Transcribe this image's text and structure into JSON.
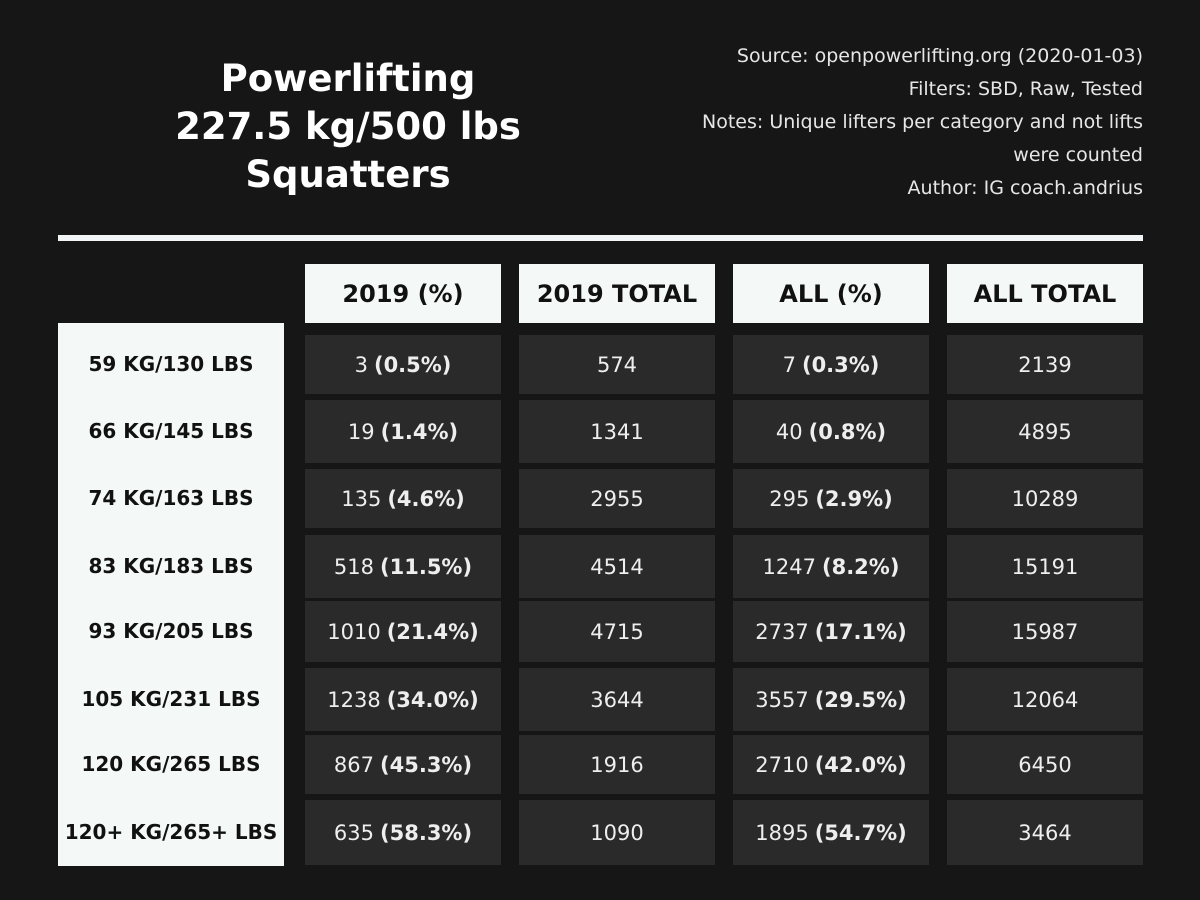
{
  "title": {
    "line1": "Powerlifting",
    "line2": "227.5 kg/500 lbs",
    "line3": "Squatters"
  },
  "meta": {
    "source": "Source: openpowerlifting.org (2020-01-03)",
    "filters": "Filters: SBD, Raw, Tested",
    "notes_line1": "Notes: Unique lifters per category and not lifts",
    "notes_line2": "were counted",
    "author": "Author: IG coach.andrius"
  },
  "colors": {
    "background": "#161616",
    "header_bg": "#f4f9f8",
    "cell_bg": "#2a2a2a"
  },
  "chart_data": {
    "type": "table",
    "title": "Powerlifting 227.5 kg/500 lbs Squatters",
    "columns": [
      "2019 (%)",
      "2019 TOTAL",
      "ALL (%)",
      "ALL TOTAL"
    ],
    "rows": [
      {
        "label": "59 KG/130 LBS",
        "c2019": "3",
        "p2019": "(0.5%)",
        "t2019": "574",
        "call": "7",
        "pall": "(0.3%)",
        "tall": "2139"
      },
      {
        "label": "66 KG/145 LBS",
        "c2019": "19",
        "p2019": "(1.4%)",
        "t2019": "1341",
        "call": "40",
        "pall": "(0.8%)",
        "tall": "4895"
      },
      {
        "label": "74 KG/163 LBS",
        "c2019": "135",
        "p2019": "(4.6%)",
        "t2019": "2955",
        "call": "295",
        "pall": "(2.9%)",
        "tall": "10289"
      },
      {
        "label": "83 KG/183 LBS",
        "c2019": "518",
        "p2019": "(11.5%)",
        "t2019": "4514",
        "call": "1247",
        "pall": "(8.2%)",
        "tall": "15191"
      },
      {
        "label": "93 KG/205 LBS",
        "c2019": "1010",
        "p2019": "(21.4%)",
        "t2019": "4715",
        "call": "2737",
        "pall": "(17.1%)",
        "tall": "15987"
      },
      {
        "label": "105 KG/231 LBS",
        "c2019": "1238",
        "p2019": "(34.0%)",
        "t2019": "3644",
        "call": "3557",
        "pall": "(29.5%)",
        "tall": "12064"
      },
      {
        "label": "120 KG/265 LBS",
        "c2019": "867",
        "p2019": "(45.3%)",
        "t2019": "1916",
        "call": "2710",
        "pall": "(42.0%)",
        "tall": "6450"
      },
      {
        "label": "120+ KG/265+ LBS",
        "c2019": "635",
        "p2019": "(58.3%)",
        "t2019": "1090",
        "call": "1895",
        "pall": "(54.7%)",
        "tall": "3464"
      }
    ]
  }
}
